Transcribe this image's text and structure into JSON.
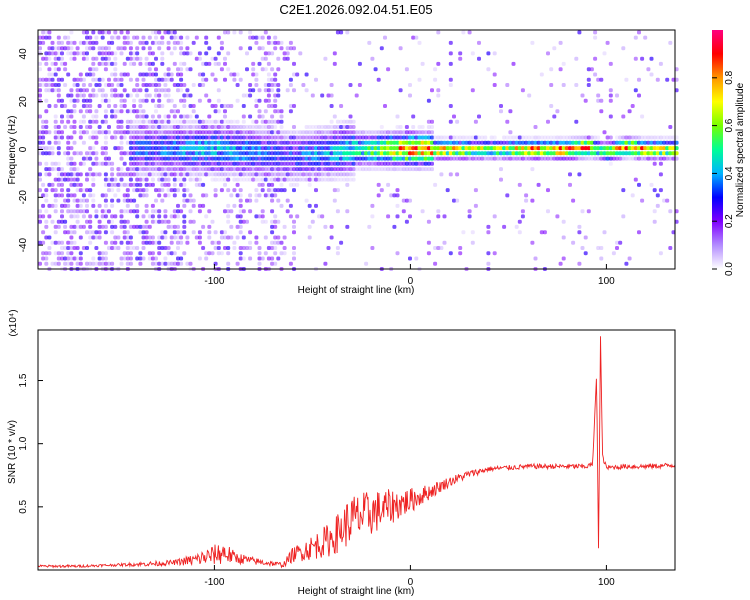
{
  "figure": {
    "title": "C2E1.2026.092.04.51.E05"
  },
  "chart_data": [
    {
      "type": "heatmap",
      "name": "spectrogram",
      "xlabel": "Height of straight line (km)",
      "ylabel": "Frequency (Hz)",
      "xlim": [
        -190,
        135
      ],
      "ylim": [
        -50,
        50
      ],
      "xticks": [
        -100,
        0,
        100
      ],
      "xtick_labels": [
        "-100",
        "0",
        "100"
      ],
      "yticks": [
        -40,
        -20,
        0,
        20,
        40
      ],
      "ytick_labels": [
        "-40",
        "-20",
        "0",
        "20",
        "40"
      ],
      "colorbar": {
        "label": "Normalized spectral amplitude",
        "range": [
          0.0,
          1.0
        ],
        "ticks": [
          0.0,
          0.2,
          0.4,
          0.6,
          0.8
        ],
        "tick_labels": [
          "0.0",
          "0.2",
          "0.4",
          "0.6",
          "0.8"
        ],
        "colormap": [
          "#ffffff",
          "#b38cff",
          "#7f00ff",
          "#0000ff",
          "#00b4ff",
          "#00ff96",
          "#78ff00",
          "#ffff00",
          "#ff9600",
          "#ff0000",
          "#ff0080"
        ]
      },
      "ridge": {
        "description_free": true,
        "x": [
          -145,
          -120,
          -100,
          -80,
          -70,
          -60,
          -50,
          -40,
          -30,
          -20,
          -10,
          0,
          20,
          40,
          60,
          80,
          90,
          95,
          100,
          110,
          120,
          135
        ],
        "center_hz": [
          0,
          0,
          0,
          -1,
          -2,
          -3,
          -2,
          -1,
          0,
          0,
          0,
          0,
          0,
          0,
          0,
          0,
          1,
          0,
          -1,
          1,
          0,
          0
        ],
        "amplitude": [
          0.3,
          0.35,
          0.4,
          0.35,
          0.3,
          0.3,
          0.35,
          0.4,
          0.45,
          0.55,
          0.7,
          0.8,
          0.75,
          0.6,
          0.75,
          0.85,
          0.9,
          0.5,
          0.7,
          0.8,
          0.75,
          0.7
        ]
      }
    },
    {
      "type": "line",
      "name": "snr",
      "xlabel": "Height of straight line (km)",
      "ylabel": "SNR (10 * v/v)",
      "scale_label": "(x10⁴)",
      "xlim": [
        -190,
        135
      ],
      "ylim": [
        0,
        1.9
      ],
      "xticks": [
        -100,
        0,
        100
      ],
      "xtick_labels": [
        "-100",
        "0",
        "100"
      ],
      "yticks": [
        0.5,
        1.0,
        1.5
      ],
      "ytick_labels": [
        "0.5",
        "1.0",
        "1.5"
      ],
      "color": "#ee2222",
      "series": [
        {
          "name": "SNR",
          "x": [
            -190,
            -170,
            -150,
            -130,
            -120,
            -110,
            -100,
            -95,
            -90,
            -80,
            -70,
            -65,
            -60,
            -50,
            -40,
            -30,
            -20,
            -10,
            0,
            10,
            20,
            30,
            40,
            50,
            60,
            70,
            80,
            90,
            93,
            95,
            96,
            97,
            98,
            100,
            110,
            120,
            135
          ],
          "y": [
            0.03,
            0.03,
            0.04,
            0.05,
            0.06,
            0.08,
            0.12,
            0.14,
            0.1,
            0.07,
            0.05,
            0.04,
            0.12,
            0.18,
            0.25,
            0.4,
            0.45,
            0.5,
            0.55,
            0.62,
            0.7,
            0.76,
            0.8,
            0.81,
            0.82,
            0.82,
            0.82,
            0.82,
            0.84,
            1.55,
            0.1,
            1.85,
            0.9,
            0.81,
            0.82,
            0.82,
            0.83
          ],
          "noise": [
            0.01,
            0.01,
            0.01,
            0.02,
            0.02,
            0.05,
            0.08,
            0.1,
            0.05,
            0.03,
            0.02,
            0.02,
            0.06,
            0.1,
            0.14,
            0.2,
            0.18,
            0.14,
            0.1,
            0.06,
            0.04,
            0.03,
            0.02,
            0.02,
            0.02,
            0.02,
            0.02,
            0.02,
            0.02,
            0.0,
            0.0,
            0.0,
            0.02,
            0.02,
            0.02,
            0.02,
            0.02
          ]
        }
      ]
    }
  ]
}
